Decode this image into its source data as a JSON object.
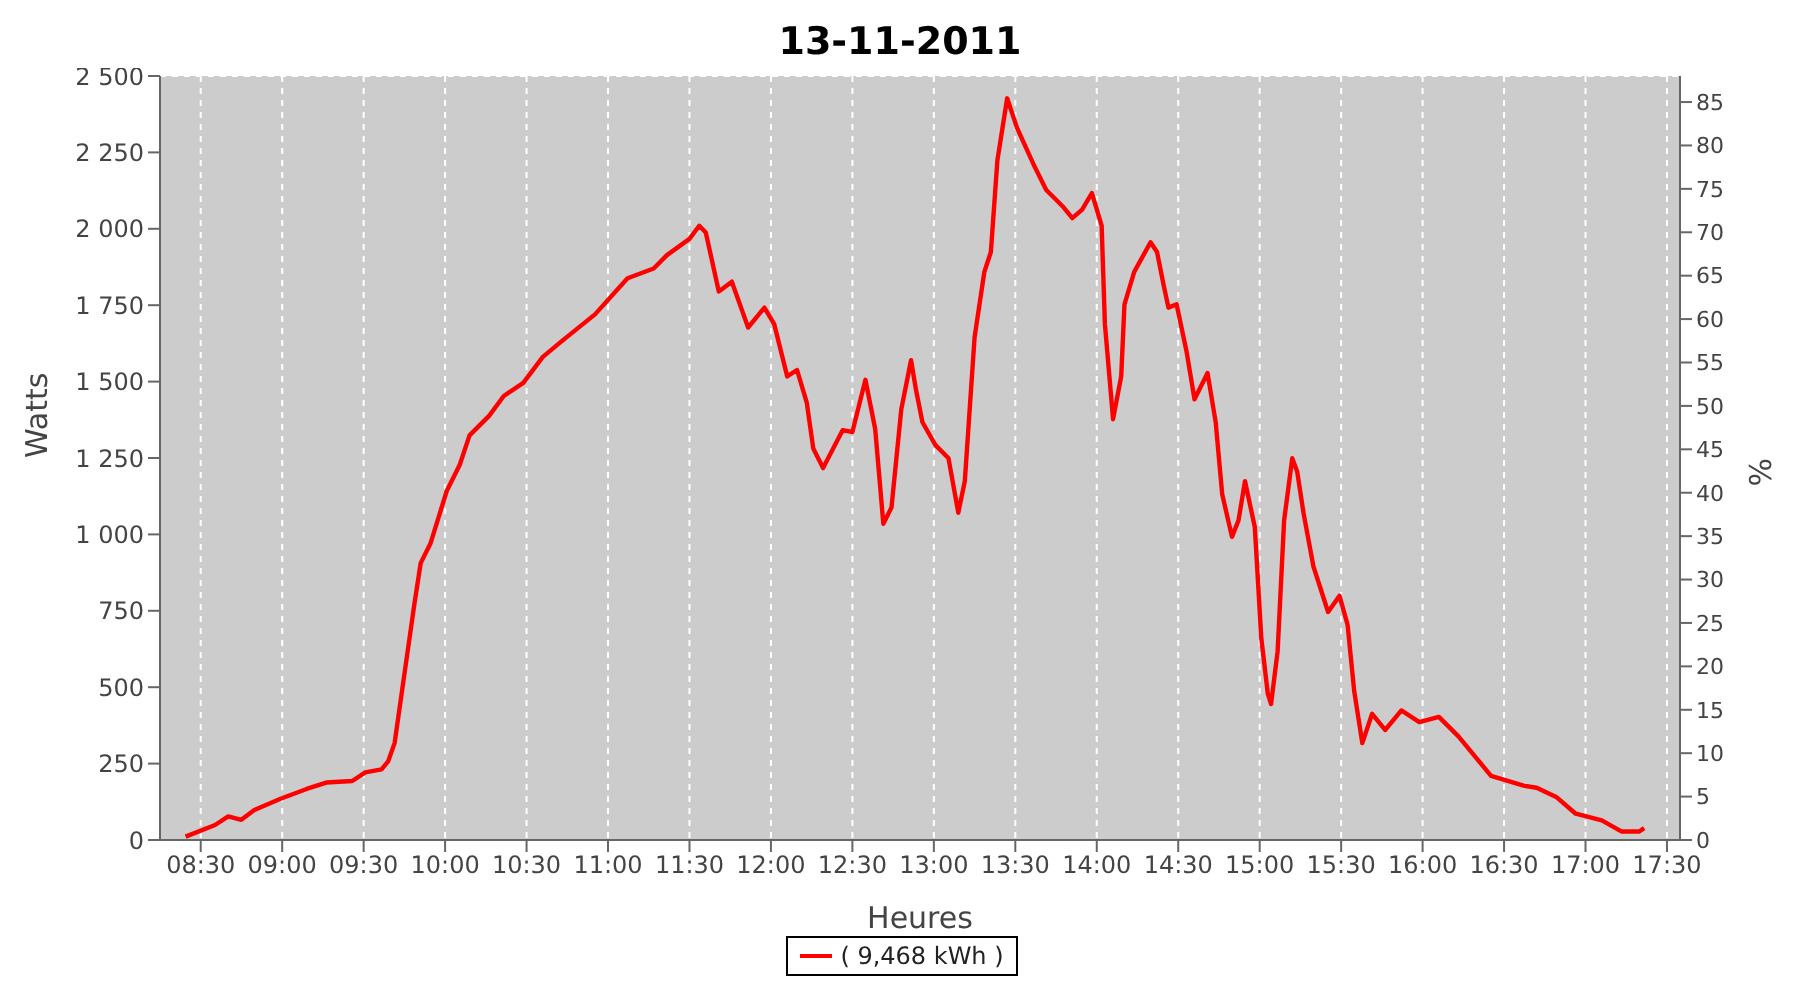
{
  "chart_data": {
    "type": "line",
    "title": "13-11-2011",
    "xlabel": "Heures",
    "ylabel": "Watts",
    "y2label": "%",
    "x": [
      8.407,
      8.588,
      8.669,
      8.749,
      8.829,
      8.99,
      9.15,
      9.27,
      9.43,
      9.51,
      9.61,
      9.65,
      9.69,
      9.73,
      9.77,
      9.81,
      9.85,
      9.91,
      10.01,
      10.09,
      10.15,
      10.27,
      10.36,
      10.48,
      10.6,
      10.72,
      10.92,
      11.12,
      11.28,
      11.36,
      11.5,
      11.56,
      11.6,
      11.68,
      11.76,
      11.86,
      11.96,
      12.02,
      12.1,
      12.16,
      12.22,
      12.26,
      12.32,
      12.44,
      12.5,
      12.58,
      12.64,
      12.69,
      12.74,
      12.8,
      12.86,
      12.89,
      12.93,
      13.01,
      13.09,
      13.15,
      13.19,
      13.25,
      13.31,
      13.35,
      13.39,
      13.45,
      13.51,
      13.61,
      13.69,
      13.79,
      13.85,
      13.91,
      13.97,
      14.03,
      14.05,
      14.1,
      14.15,
      14.17,
      14.23,
      14.33,
      14.37,
      14.41,
      14.44,
      14.49,
      14.55,
      14.6,
      14.68,
      14.73,
      14.77,
      14.83,
      14.87,
      14.91,
      14.97,
      15.01,
      15.05,
      15.07,
      15.11,
      15.15,
      15.2,
      15.23,
      15.27,
      15.33,
      15.42,
      15.49,
      15.54,
      15.58,
      15.63,
      15.69,
      15.77,
      15.87,
      15.98,
      16.1,
      16.22,
      16.42,
      16.62,
      16.7,
      16.82,
      16.94,
      17.1,
      17.22,
      17.33,
      17.36
    ],
    "series": [
      {
        "name": "( 9,468 kWh )",
        "color": "#ff0000",
        "values": [
          11,
          49,
          77,
          66,
          98,
          135,
          167,
          188,
          193,
          221,
          231,
          257,
          317,
          467,
          617,
          767,
          906,
          970,
          1142,
          1228,
          1324,
          1388,
          1453,
          1496,
          1581,
          1634,
          1720,
          1838,
          1870,
          1913,
          1967,
          2010,
          1988,
          1795,
          1827,
          1677,
          1742,
          1688,
          1517,
          1538,
          1431,
          1281,
          1217,
          1341,
          1335,
          1506,
          1345,
          1035,
          1088,
          1409,
          1570,
          1474,
          1367,
          1292,
          1249,
          1071,
          1174,
          1645,
          1859,
          1924,
          2224,
          2427,
          2331,
          2213,
          2127,
          2074,
          2035,
          2063,
          2117,
          2010,
          1688,
          1377,
          1517,
          1753,
          1859,
          1956,
          1924,
          1817,
          1742,
          1753,
          1602,
          1442,
          1528,
          1367,
          1131,
          992,
          1046,
          1174,
          1024,
          660,
          478,
          445,
          617,
          1046,
          1249,
          1206,
          1067,
          895,
          746,
          799,
          703,
          488,
          317,
          413,
          360,
          424,
          386,
          403,
          339,
          210,
          178,
          171,
          141,
          86,
          64,
          28,
          28,
          39
        ]
      }
    ],
    "xlim": [
      8.25,
      17.58
    ],
    "xticks": [
      {
        "value": 8.5,
        "label": "08:30"
      },
      {
        "value": 9,
        "label": "09:00"
      },
      {
        "value": 9.5,
        "label": "09:30"
      },
      {
        "value": 10,
        "label": "10:00"
      },
      {
        "value": 10.5,
        "label": "10:30"
      },
      {
        "value": 11,
        "label": "11:00"
      },
      {
        "value": 11.5,
        "label": "11:30"
      },
      {
        "value": 12,
        "label": "12:00"
      },
      {
        "value": 12.5,
        "label": "12:30"
      },
      {
        "value": 13,
        "label": "13:00"
      },
      {
        "value": 13.5,
        "label": "13:30"
      },
      {
        "value": 14,
        "label": "14:00"
      },
      {
        "value": 14.5,
        "label": "14:30"
      },
      {
        "value": 15,
        "label": "15:00"
      },
      {
        "value": 15.5,
        "label": "15:30"
      },
      {
        "value": 16,
        "label": "16:00"
      },
      {
        "value": 16.5,
        "label": "16:30"
      },
      {
        "value": 17,
        "label": "17:00"
      },
      {
        "value": 17.5,
        "label": "17:30"
      }
    ],
    "ylim": [
      0,
      2500
    ],
    "yticks": [
      0,
      250,
      500,
      750,
      {
        "value": 1000,
        "label": "1 000"
      },
      {
        "value": 1250,
        "label": "1 250"
      },
      {
        "value": 1500,
        "label": "1 500"
      },
      {
        "value": 1750,
        "label": "1 750"
      },
      {
        "value": 2000,
        "label": "2 000"
      },
      {
        "value": 2250,
        "label": "2 250"
      },
      {
        "value": 2500,
        "label": "2 500"
      }
    ],
    "y2lim": [
      0,
      88
    ],
    "y2ticks": [
      0,
      5,
      10,
      15,
      20,
      25,
      30,
      35,
      40,
      45,
      50,
      55,
      60,
      65,
      70,
      75,
      80,
      85
    ],
    "grid": true,
    "legend": "bottom",
    "marker": "none",
    "line_style": "solid"
  }
}
